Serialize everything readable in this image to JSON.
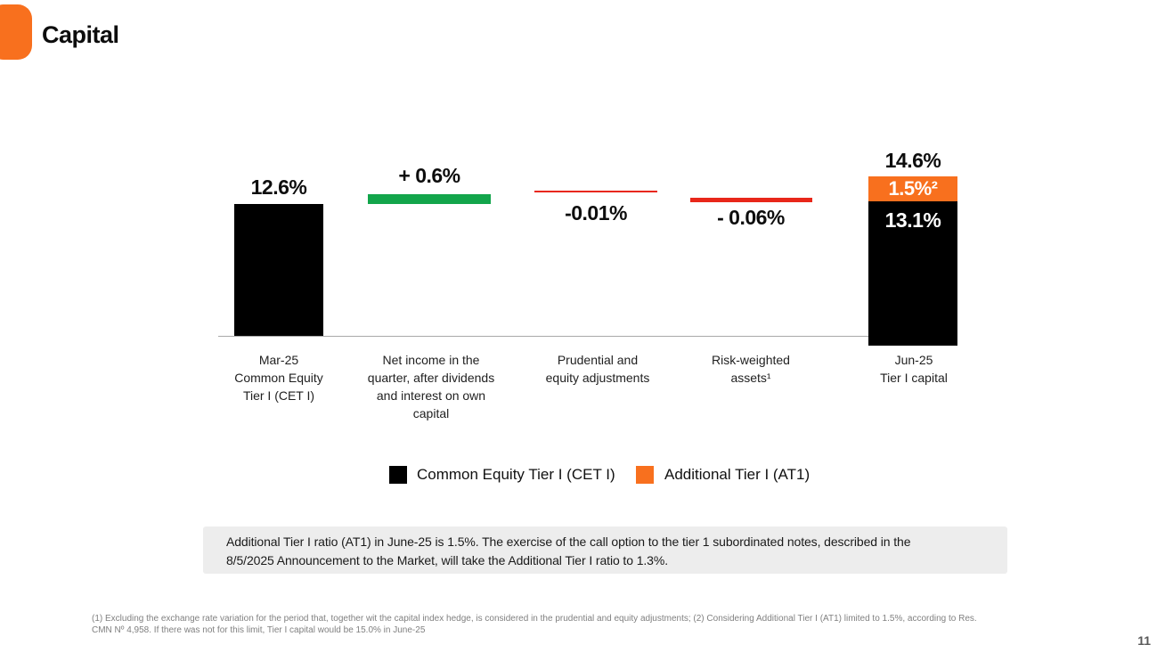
{
  "slide": {
    "title": "Capital",
    "page_number": "11",
    "brand_color": "#F8701E"
  },
  "chart_data": {
    "type": "bar",
    "subtype": "waterfall",
    "unit": "%",
    "ylim": [
      0,
      15
    ],
    "grid": false,
    "legend_position": "bottom-center",
    "columns": [
      {
        "category": "Mar-25\nCommon Equity\nTier I (CET I)",
        "value": 12.6,
        "value_label": "12.6%",
        "role": "total",
        "color": "#000000"
      },
      {
        "category": "Net income in the\nquarter, after dividends\nand interest on own\ncapital",
        "value": 0.6,
        "value_label": "+ 0.6%",
        "role": "increase",
        "color": "#12A54B"
      },
      {
        "category": "Prudential and\nequity adjustments",
        "value": -0.01,
        "value_label": "-0.01%",
        "role": "decrease",
        "color": "#E8271A"
      },
      {
        "category": "Risk-weighted\nassets¹",
        "value": -0.06,
        "value_label": "- 0.06%",
        "role": "decrease",
        "color": "#E8271A"
      },
      {
        "category": "Jun-25\nTier I capital",
        "value": 14.6,
        "value_label": "14.6%",
        "role": "total",
        "segments": [
          {
            "name": "Additional Tier I (AT1)",
            "value": 1.5,
            "label": "1.5%²",
            "color": "#F8701E"
          },
          {
            "name": "Common Equity Tier I (CET I)",
            "value": 13.1,
            "label": "13.1%",
            "color": "#000000"
          }
        ]
      }
    ],
    "legend": [
      {
        "label": "Common Equity Tier I (CET I)",
        "color": "#000000"
      },
      {
        "label": "Additional Tier I (AT1)",
        "color": "#F8701E"
      }
    ]
  },
  "callout": {
    "text": "Additional Tier I ratio (AT1) in June-25 is 1.5%. The exercise of the call option to the tier 1 subordinated notes, described in the\n8/5/2025 Announcement to the Market, will take the Additional Tier I ratio to 1.3%."
  },
  "footnote": {
    "text": "(1) Excluding the exchange rate variation for the period that, together wit the capital index hedge, is considered in the prudential and equity adjustments; (2) Considering Additional Tier I (AT1) limited to 1.5%, according to Res.\nCMN Nº 4,958. If there was not for this limit, Tier I capital would be 15.0% in June-25"
  }
}
